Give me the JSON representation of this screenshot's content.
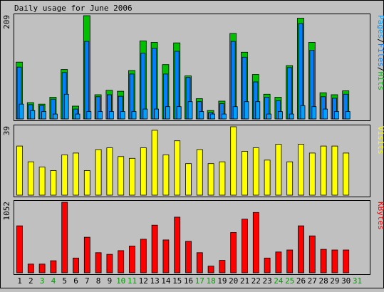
{
  "title": "Daily usage for June 2006",
  "colors": {
    "background": "#c0c0c0",
    "pages": "#00a0ff",
    "files": "#0080ff",
    "hits": "#00c000",
    "visits": "#ffff00",
    "kbytes": "#ff0000",
    "weekday_label": "#000000",
    "weekend_label": "#00a000"
  },
  "days": [
    "1",
    "2",
    "3",
    "4",
    "5",
    "6",
    "7",
    "8",
    "9",
    "10",
    "11",
    "12",
    "13",
    "14",
    "15",
    "16",
    "17",
    "18",
    "19",
    "20",
    "21",
    "22",
    "23",
    "24",
    "25",
    "26",
    "27",
    "28",
    "29",
    "30",
    "31"
  ],
  "weekend_days": [
    "3",
    "4",
    "10",
    "11",
    "17",
    "18",
    "24",
    "25",
    "31"
  ],
  "chart_data": [
    {
      "type": "bar",
      "name": "pages-files-hits",
      "legend": [
        {
          "label": "Pages",
          "color": "#00a0ff"
        },
        {
          "label": "/",
          "color": "#000000"
        },
        {
          "label": "Files",
          "color": "#0080ff"
        },
        {
          "label": "/",
          "color": "#000000"
        },
        {
          "label": "Hits",
          "color": "#00c000"
        }
      ],
      "ymax_label": "209",
      "ylim": [
        0,
        209
      ],
      "categories": [
        "1",
        "2",
        "3",
        "4",
        "5",
        "6",
        "7",
        "8",
        "9",
        "10",
        "11",
        "12",
        "13",
        "14",
        "15",
        "16",
        "17",
        "18",
        "19",
        "20",
        "21",
        "22",
        "23",
        "24",
        "25",
        "26",
        "27",
        "28",
        "29",
        "30",
        "31"
      ],
      "series": [
        {
          "name": "Hits",
          "values": [
            115,
            33,
            30,
            44,
            100,
            26,
            209,
            49,
            58,
            56,
            98,
            158,
            155,
            110,
            154,
            87,
            41,
            17,
            36,
            173,
            135,
            90,
            50,
            44,
            108,
            204,
            155,
            53,
            49,
            57,
            0
          ]
        },
        {
          "name": "Files",
          "values": [
            105,
            29,
            27,
            40,
            94,
            20,
            157,
            45,
            49,
            46,
            91,
            133,
            143,
            91,
            137,
            84,
            35,
            13,
            31,
            157,
            125,
            75,
            44,
            37,
            104,
            193,
            139,
            45,
            42,
            50,
            0
          ]
        },
        {
          "name": "Pages",
          "values": [
            30,
            17,
            15,
            10,
            50,
            10,
            15,
            15,
            15,
            15,
            15,
            20,
            20,
            25,
            25,
            35,
            15,
            10,
            10,
            25,
            35,
            35,
            10,
            15,
            10,
            27,
            25,
            20,
            15,
            15,
            0
          ]
        }
      ]
    },
    {
      "type": "bar",
      "name": "visits",
      "legend": [
        {
          "label": "Visits",
          "color": "#ffff00"
        }
      ],
      "ymax_label": "39",
      "ylim": [
        0,
        39
      ],
      "categories": [
        "1",
        "2",
        "3",
        "4",
        "5",
        "6",
        "7",
        "8",
        "9",
        "10",
        "11",
        "12",
        "13",
        "14",
        "15",
        "16",
        "17",
        "18",
        "19",
        "20",
        "21",
        "22",
        "23",
        "24",
        "25",
        "26",
        "27",
        "28",
        "29",
        "30",
        "31"
      ],
      "series": [
        {
          "name": "Visits",
          "values": [
            28,
            19,
            16,
            14,
            23,
            24,
            14,
            26,
            27,
            22,
            21,
            27,
            37,
            23,
            31,
            18,
            26,
            18,
            19,
            39,
            25,
            27,
            20,
            29,
            19,
            29,
            24,
            28,
            28,
            24,
            0
          ]
        }
      ]
    },
    {
      "type": "bar",
      "name": "kbytes",
      "legend": [
        {
          "label": "KBytes",
          "color": "#ff0000"
        }
      ],
      "ymax_label": "1052",
      "ylim": [
        0,
        1052
      ],
      "categories": [
        "1",
        "2",
        "3",
        "4",
        "5",
        "6",
        "7",
        "8",
        "9",
        "10",
        "11",
        "12",
        "13",
        "14",
        "15",
        "16",
        "17",
        "18",
        "19",
        "20",
        "21",
        "22",
        "23",
        "24",
        "25",
        "26",
        "27",
        "28",
        "29",
        "30",
        "31"
      ],
      "series": [
        {
          "name": "KBytes",
          "values": [
            700,
            130,
            130,
            180,
            1052,
            220,
            530,
            300,
            275,
            330,
            400,
            500,
            710,
            490,
            830,
            470,
            300,
            100,
            185,
            600,
            800,
            900,
            220,
            310,
            340,
            700,
            550,
            350,
            340,
            340,
            0
          ]
        }
      ]
    }
  ]
}
